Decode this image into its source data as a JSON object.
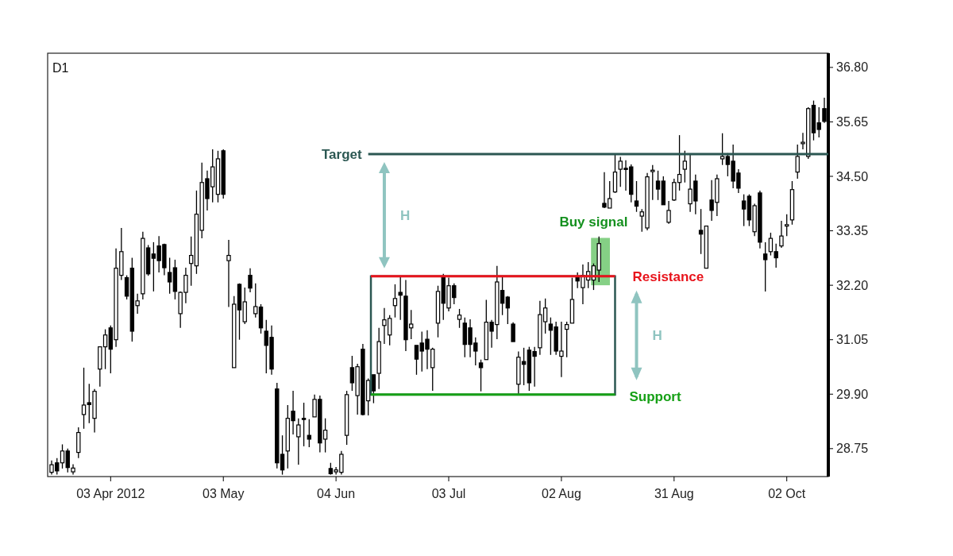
{
  "chart_data": {
    "type": "candlestick",
    "title": "D1",
    "categories": [
      null,
      null,
      null,
      null,
      null,
      null,
      null,
      null,
      null,
      null,
      null,
      "03 Apr 2012",
      null,
      null,
      null,
      null,
      null,
      null,
      null,
      null,
      null,
      null,
      null,
      null,
      null,
      null,
      null,
      null,
      null,
      null,
      null,
      null,
      "03 May",
      null,
      null,
      null,
      null,
      null,
      null,
      null,
      null,
      null,
      null,
      null,
      null,
      null,
      null,
      null,
      null,
      null,
      null,
      null,
      null,
      "04 Jun",
      null,
      null,
      null,
      null,
      null,
      null,
      null,
      null,
      null,
      null,
      null,
      null,
      null,
      null,
      null,
      null,
      null,
      null,
      null,
      null,
      "03 Jul",
      null,
      null,
      null,
      null,
      null,
      null,
      null,
      null,
      null,
      null,
      null,
      null,
      null,
      null,
      null,
      null,
      null,
      null,
      null,
      null,
      "02 Aug",
      null,
      null,
      null,
      null,
      null,
      null,
      null,
      null,
      null,
      null,
      null,
      null,
      null,
      null,
      null,
      null,
      null,
      null,
      null,
      null,
      "31 Aug",
      null,
      null,
      null,
      null,
      null,
      null,
      null,
      null,
      null,
      null,
      null,
      null,
      null,
      null,
      null,
      null,
      null,
      null,
      null,
      null,
      "02 Oct",
      null,
      null,
      null,
      null,
      null,
      null,
      null
    ],
    "ohlc": [
      [
        28.25,
        28.5,
        28.2,
        28.41
      ],
      [
        28.45,
        28.55,
        28.2,
        28.28
      ],
      [
        28.45,
        28.84,
        28.33,
        28.7
      ],
      [
        28.7,
        28.75,
        28.25,
        28.35
      ],
      [
        28.26,
        28.42,
        28.2,
        28.34
      ],
      [
        28.67,
        29.2,
        28.55,
        29.09
      ],
      [
        29.47,
        30.46,
        29.17,
        29.67
      ],
      [
        29.72,
        30.12,
        29.29,
        29.68
      ],
      [
        29.39,
        30.01,
        29.09,
        29.96
      ],
      [
        30.43,
        30.9,
        30.06,
        30.9
      ],
      [
        30.9,
        31.27,
        30.43,
        31.15
      ],
      [
        31.3,
        31.35,
        30.34,
        30.85
      ],
      [
        31.05,
        32.98,
        30.9,
        32.56
      ],
      [
        32.41,
        33.41,
        32.31,
        32.91
      ],
      [
        32.36,
        32.41,
        31.9,
        31.97
      ],
      [
        32.56,
        32.78,
        31.01,
        31.23
      ],
      [
        31.77,
        32.02,
        31.6,
        31.87
      ],
      [
        32.02,
        33.33,
        31.9,
        33.19
      ],
      [
        32.99,
        33.05,
        32.4,
        32.44
      ],
      [
        32.86,
        33.11,
        32.07,
        32.77
      ],
      [
        33.03,
        33.24,
        32.47,
        32.72
      ],
      [
        33.06,
        33.08,
        32.41,
        32.57
      ],
      [
        32.47,
        32.78,
        32.02,
        32.27
      ],
      [
        32.57,
        32.74,
        31.9,
        32.07
      ],
      [
        31.6,
        32.07,
        31.3,
        32.05
      ],
      [
        32.05,
        32.57,
        31.82,
        32.41
      ],
      [
        32.66,
        33.23,
        32.19,
        32.83
      ],
      [
        32.61,
        34.2,
        32.44,
        33.7
      ],
      [
        33.36,
        34.79,
        33.19,
        34.37
      ],
      [
        34.45,
        34.62,
        33.78,
        34.03
      ],
      [
        34.28,
        35.07,
        33.95,
        34.7
      ],
      [
        34.12,
        35.04,
        33.95,
        34.87
      ],
      [
        35.04,
        35.07,
        34.03,
        34.12
      ],
      [
        32.72,
        33.16,
        31.74,
        32.83
      ],
      [
        30.46,
        31.97,
        30.46,
        31.8
      ],
      [
        32.22,
        32.24,
        31.05,
        31.68
      ],
      [
        31.43,
        32.15,
        31.38,
        31.85
      ],
      [
        32.41,
        32.56,
        32.05,
        32.14
      ],
      [
        31.6,
        32.24,
        31.52,
        31.75
      ],
      [
        31.74,
        31.8,
        31.18,
        31.3
      ],
      [
        31.23,
        31.47,
        30.34,
        30.93
      ],
      [
        31.1,
        31.35,
        30.31,
        30.43
      ],
      [
        30.01,
        30.14,
        28.33,
        28.45
      ],
      [
        28.63,
        29.03,
        28.2,
        28.3
      ],
      [
        28.7,
        29.67,
        28.33,
        29.39
      ],
      [
        29.54,
        29.97,
        29.05,
        29.34
      ],
      [
        29.0,
        29.39,
        28.41,
        29.25
      ],
      [
        29.39,
        29.72,
        28.8,
        29.37
      ],
      [
        29.03,
        29.37,
        28.78,
        28.95
      ],
      [
        29.42,
        29.89,
        29.42,
        29.79
      ],
      [
        29.79,
        29.87,
        28.67,
        28.87
      ],
      [
        28.95,
        29.39,
        28.67,
        29.14
      ],
      [
        28.33,
        28.45,
        28.2,
        28.22
      ],
      [
        28.26,
        28.36,
        28.2,
        28.3
      ],
      [
        28.25,
        28.7,
        28.2,
        28.63
      ],
      [
        29.03,
        29.97,
        28.83,
        29.89
      ],
      [
        30.46,
        30.71,
        29.97,
        30.14
      ],
      [
        29.87,
        30.54,
        29.47,
        30.48
      ],
      [
        30.85,
        30.96,
        29.45,
        29.47
      ],
      [
        29.76,
        30.23,
        29.45,
        30.19
      ],
      [
        30.31,
        30.31,
        29.71,
        29.97
      ],
      [
        30.34,
        31.3,
        30.01,
        31.01
      ],
      [
        31.35,
        31.72,
        30.96,
        31.47
      ],
      [
        31.15,
        31.57,
        30.93,
        31.5
      ],
      [
        31.77,
        32.22,
        31.52,
        31.92
      ],
      [
        32.05,
        32.37,
        31.47,
        31.99
      ],
      [
        31.97,
        32.31,
        30.81,
        31.05
      ],
      [
        31.3,
        31.68,
        31.06,
        31.38
      ],
      [
        30.93,
        30.93,
        30.31,
        30.64
      ],
      [
        30.98,
        31.22,
        30.38,
        30.81
      ],
      [
        31.06,
        31.25,
        30.43,
        30.85
      ],
      [
        30.46,
        30.88,
        29.97,
        30.85
      ],
      [
        31.4,
        32.19,
        31.1,
        32.07
      ],
      [
        32.39,
        32.44,
        31.47,
        31.82
      ],
      [
        31.72,
        32.36,
        31.65,
        32.19
      ],
      [
        32.19,
        32.24,
        31.8,
        31.94
      ],
      [
        31.48,
        31.7,
        31.3,
        31.57
      ],
      [
        31.4,
        31.52,
        30.68,
        30.95
      ],
      [
        31.3,
        31.48,
        30.68,
        30.95
      ],
      [
        30.98,
        31.1,
        30.51,
        30.81
      ],
      [
        30.56,
        30.63,
        29.96,
        30.46
      ],
      [
        30.63,
        31.89,
        30.63,
        31.42
      ],
      [
        31.42,
        31.47,
        30.88,
        31.23
      ],
      [
        31.37,
        32.61,
        31.06,
        32.27
      ],
      [
        32.09,
        32.39,
        31.57,
        31.82
      ],
      [
        31.95,
        31.97,
        31.38,
        31.72
      ],
      [
        31.38,
        31.42,
        31.01,
        31.01
      ],
      [
        30.11,
        30.8,
        29.89,
        30.68
      ],
      [
        30.59,
        30.88,
        30.09,
        30.53
      ],
      [
        30.83,
        30.9,
        29.97,
        30.14
      ],
      [
        30.8,
        30.9,
        30.06,
        30.7
      ],
      [
        30.88,
        31.87,
        30.73,
        31.58
      ],
      [
        31.43,
        31.92,
        31.18,
        31.72
      ],
      [
        31.38,
        31.52,
        30.73,
        31.25
      ],
      [
        31.32,
        31.43,
        30.73,
        30.81
      ],
      [
        30.7,
        31.43,
        30.26,
        30.81
      ],
      [
        31.27,
        31.43,
        30.68,
        31.37
      ],
      [
        31.4,
        32.36,
        31.4,
        31.9
      ],
      [
        32.36,
        32.47,
        32.14,
        32.29
      ],
      [
        32.15,
        32.64,
        31.8,
        32.41
      ],
      [
        32.31,
        32.69,
        32.14,
        32.49
      ],
      [
        32.31,
        32.66,
        32.1,
        32.61
      ],
      [
        32.52,
        33.23,
        32.27,
        33.08
      ],
      [
        33.93,
        34.59,
        33.83,
        33.85
      ],
      [
        33.83,
        34.4,
        33.83,
        34.03
      ],
      [
        34.17,
        34.96,
        34.15,
        34.59
      ],
      [
        34.65,
        34.91,
        34.28,
        34.82
      ],
      [
        34.67,
        34.84,
        34.2,
        34.65
      ],
      [
        34.7,
        34.75,
        33.95,
        34.12
      ],
      [
        33.98,
        34.4,
        33.75,
        33.87
      ],
      [
        33.66,
        33.81,
        33.33,
        33.75
      ],
      [
        33.41,
        34.57,
        33.36,
        34.49
      ],
      [
        34.6,
        34.74,
        34.0,
        34.63
      ],
      [
        34.4,
        34.62,
        34.0,
        34.23
      ],
      [
        34.4,
        34.5,
        33.9,
        33.9
      ],
      [
        33.53,
        33.98,
        33.5,
        33.78
      ],
      [
        34.0,
        34.45,
        33.98,
        34.37
      ],
      [
        34.37,
        35.37,
        34.2,
        34.54
      ],
      [
        34.65,
        35.04,
        34.37,
        34.82
      ],
      [
        33.92,
        34.96,
        33.75,
        34.23
      ],
      [
        34.4,
        34.54,
        33.7,
        33.98
      ],
      [
        33.36,
        33.81,
        32.86,
        33.28
      ],
      [
        32.56,
        33.45,
        32.56,
        33.45
      ],
      [
        34.0,
        34.42,
        33.56,
        33.78
      ],
      [
        33.95,
        34.54,
        33.66,
        34.45
      ],
      [
        34.87,
        35.41,
        34.74,
        34.92
      ],
      [
        34.92,
        34.99,
        34.5,
        34.75
      ],
      [
        34.82,
        35.17,
        34.25,
        34.4
      ],
      [
        34.57,
        34.65,
        34.15,
        34.25
      ],
      [
        33.98,
        34.12,
        33.45,
        33.81
      ],
      [
        34.08,
        34.12,
        33.45,
        33.58
      ],
      [
        33.33,
        33.92,
        33.24,
        33.88
      ],
      [
        34.15,
        34.2,
        32.98,
        33.11
      ],
      [
        32.86,
        33.11,
        32.07,
        32.74
      ],
      [
        32.91,
        33.31,
        32.83,
        33.19
      ],
      [
        32.91,
        33.08,
        32.57,
        32.78
      ],
      [
        33.03,
        33.56,
        32.99,
        33.24
      ],
      [
        33.45,
        33.7,
        33.24,
        33.48
      ],
      [
        33.58,
        34.4,
        33.48,
        34.22
      ],
      [
        34.59,
        35.17,
        34.45,
        34.92
      ],
      [
        35.19,
        35.42,
        35.07,
        35.22
      ],
      [
        34.92,
        35.96,
        34.87,
        35.93
      ],
      [
        36.0,
        36.1,
        35.26,
        35.42
      ],
      [
        35.63,
        35.96,
        35.32,
        35.49
      ],
      [
        35.93,
        36.16,
        35.63,
        35.66
      ]
    ],
    "ylim": [
      28.16,
      37.1
    ],
    "yticks": [
      28.75,
      {
        "value": 29.9,
        "label": "29.90"
      },
      31.05,
      {
        "value": 32.2,
        "label": "32.20"
      },
      33.35,
      {
        "value": 34.5,
        "label": "34.50"
      },
      35.65,
      {
        "value": 36.8,
        "label": "36.80"
      }
    ],
    "ref_lines": [
      {
        "axis": "y",
        "value": 34.97,
        "label": "Target",
        "color": "#2b5752"
      },
      {
        "axis": "y",
        "value": 32.39,
        "label": "Resistance",
        "color": "#e8141c"
      },
      {
        "axis": "y",
        "value": 29.89,
        "label": "Support",
        "color": "#16a016"
      }
    ],
    "annotations": [
      "Buy signal",
      "H",
      "H"
    ]
  }
}
